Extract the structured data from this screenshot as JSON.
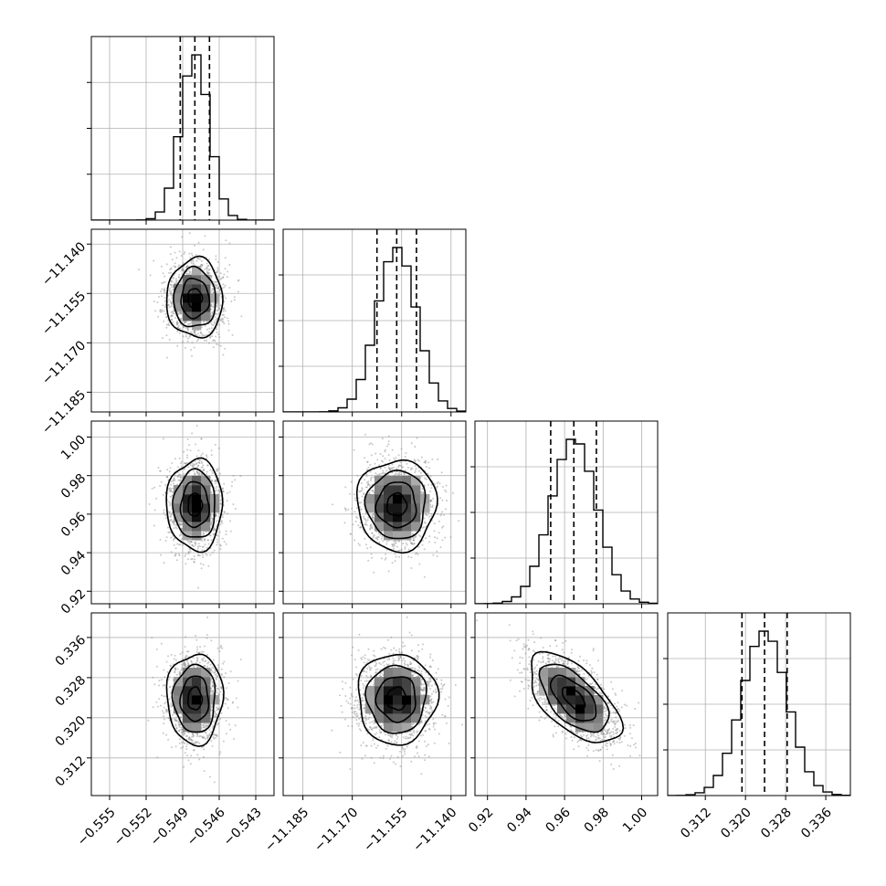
{
  "chart_data": {
    "type": "corner",
    "n_params": 4,
    "params": [
      {
        "tick_labels": [
          "−0.555",
          "−0.552",
          "−0.549",
          "−0.546",
          "−0.543"
        ],
        "range": [
          -0.5565,
          -0.5415
        ],
        "ticks": [
          -0.555,
          -0.552,
          -0.549,
          -0.546,
          -0.543
        ],
        "median": -0.548,
        "q16": -0.5492,
        "q84": -0.5468,
        "sigma": 0.00115
      },
      {
        "tick_labels": [
          "−11.185",
          "−11.170",
          "−11.155",
          "−11.140"
        ],
        "range": [
          -11.191,
          -11.1355
        ],
        "ticks": [
          -11.185,
          -11.17,
          -11.155,
          -11.14
        ],
        "median": -11.1565,
        "q16": -11.1625,
        "q84": -11.1505,
        "sigma": 0.006
      },
      {
        "tick_labels": [
          "0.92",
          "0.94",
          "0.96",
          "0.98",
          "1.00"
        ],
        "range": [
          0.9135,
          1.0083
        ],
        "ticks": [
          0.92,
          0.94,
          0.96,
          0.98,
          1.0
        ],
        "median": 0.9648,
        "q16": 0.9528,
        "q84": 0.9765,
        "sigma": 0.0118
      },
      {
        "tick_labels": [
          "0.312",
          "0.320",
          "0.328",
          "0.336"
        ],
        "range": [
          0.3045,
          0.3409
        ],
        "ticks": [
          0.312,
          0.32,
          0.328,
          0.336
        ],
        "median": 0.3238,
        "q16": 0.3193,
        "q84": 0.3283,
        "sigma": 0.0045
      }
    ],
    "correlations": [
      [
        1,
        0,
        0,
        0
      ],
      [
        0,
        1,
        0,
        0
      ],
      [
        0,
        0,
        1,
        -0.6
      ],
      [
        0,
        0,
        -0.6,
        1
      ]
    ],
    "histogram_bins": 20,
    "quantile_lines": "dashed",
    "contour_levels": 4,
    "grid": true,
    "scatter_points": true,
    "legend": "none",
    "title": "",
    "xlabel": "",
    "ylabel": ""
  }
}
